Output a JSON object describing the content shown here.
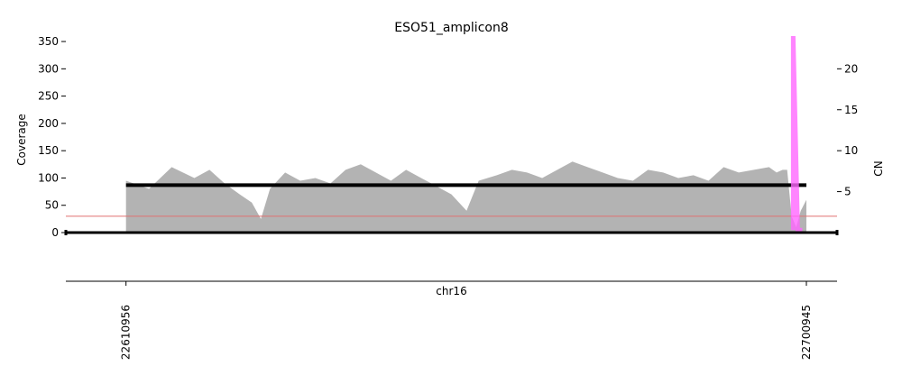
{
  "chart_data": {
    "type": "area",
    "title": "ESO51_amplicon8",
    "xlabel": "chr16",
    "ylabel_left": "Coverage",
    "ylabel_right": "CN",
    "xlim": [
      22603000,
      22705000
    ],
    "ylim_left": [
      0,
      360
    ],
    "ylim_right": [
      0,
      24
    ],
    "yticks_left": [
      0,
      50,
      100,
      150,
      200,
      250,
      300,
      350
    ],
    "yticks_right": [
      5,
      10,
      15,
      20
    ],
    "xticks": [
      22610956,
      22700945
    ],
    "threshold_line": {
      "coverage": 30,
      "color": "#e07070"
    },
    "coverage": {
      "color": "#b3b3b3",
      "x": [
        22610956,
        22614000,
        22617000,
        22620000,
        22622000,
        22624000,
        22626000,
        22627600,
        22628800,
        22630000,
        22632000,
        22634000,
        22636000,
        22638000,
        22640000,
        22642000,
        22644000,
        22646000,
        22648000,
        22650000,
        22652000,
        22654000,
        22656000,
        22657600,
        22660000,
        22662000,
        22664000,
        22666000,
        22668000,
        22670000,
        22672000,
        22674000,
        22676000,
        22678000,
        22680000,
        22682000,
        22684000,
        22686000,
        22688000,
        22690000,
        22692000,
        22694000,
        22696000,
        22697000,
        22697800,
        22698400,
        22699000,
        22699600,
        22700200,
        22700945
      ],
      "values": [
        95,
        80,
        120,
        100,
        115,
        90,
        70,
        55,
        25,
        80,
        110,
        95,
        100,
        90,
        115,
        125,
        110,
        95,
        115,
        100,
        85,
        70,
        40,
        95,
        105,
        115,
        110,
        100,
        115,
        130,
        120,
        110,
        100,
        95,
        115,
        110,
        100,
        105,
        95,
        120,
        110,
        115,
        120,
        110,
        115,
        115,
        30,
        10,
        40,
        60
      ]
    },
    "series": [
      {
        "name": "",
        "color": "#000000",
        "x": [
          22610956,
          22700945
        ],
        "cn": [
          5.8,
          5.8
        ]
      },
      {
        "name": "",
        "color": "#ff66ff",
        "x": [
          22699200,
          22699200,
          22699800,
          22700400
        ],
        "cn": [
          0.3,
          24,
          0.3,
          0.3
        ]
      }
    ]
  }
}
